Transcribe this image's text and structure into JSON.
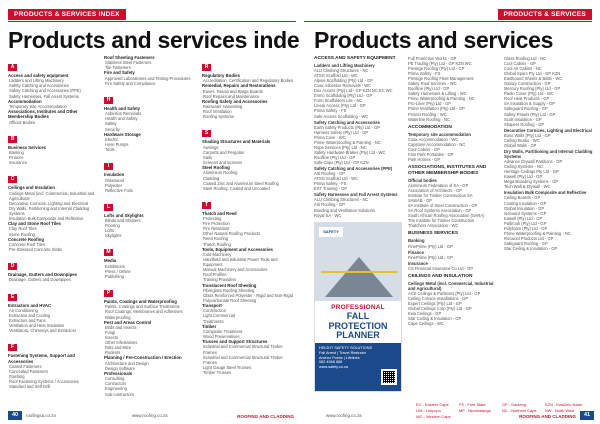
{
  "left": {
    "header_tag": "PRODUCTS & SERVICES INDEX",
    "title": "Products and services index",
    "columns": [
      [
        {
          "letter": "A",
          "groups": [
            {
              "title": "Access and safety equipment",
              "items": [
                "Ladders and Lifting Machinery",
                "Safety Catching and Accessories",
                "Safety Catching and Accessories (PPE)",
                "Safety Harnesses, Fall Arrest Systems"
              ]
            },
            {
              "title": "Accommodation",
              "items": [
                "Temporary Site Accommodation"
              ]
            },
            {
              "title": "Associations, Institutes and Other Membership Bodies",
              "items": [
                "Official Bodies"
              ]
            }
          ]
        },
        {
          "letter": "B",
          "groups": [
            {
              "title": "Business Services",
              "items": [
                "Banking",
                "Finance",
                "Insurance"
              ]
            }
          ]
        },
        {
          "letter": "C",
          "groups": [
            {
              "title": "Ceilings and Insulation",
              "items": [
                "Ceilings Metal (incl. Commercial, Industrial and Agricultural",
                "Decorative Cornices, Lighting and Electrical",
                "Dry Walls, Partitioning and Internal Cladding Systems",
                "Insulation Bulk Composite and Reflective"
              ]
            },
            {
              "title": "Clay and Stone Roof Tiles",
              "items": [
                "Clay Roof Tiles",
                "Stone Roofing"
              ]
            },
            {
              "title": "Concrete Roofing",
              "items": [
                "Concrete Roof Tiles",
                "Pre-Stressed Concrete Slabs"
              ]
            }
          ]
        },
        {
          "letter": "D",
          "groups": [
            {
              "title": "Drainage, Gutters and Downpipes",
              "items": [
                "Drainage, Gutters and Downpipes"
              ]
            }
          ]
        },
        {
          "letter": "E",
          "groups": [
            {
              "title": "Extractors and HVAC",
              "items": [
                "Air Conditioning",
                "Extraction and Cooling",
                "Extractors and Fans",
                "Ventilation and Heat Insulation",
                "Ventilators, Chimneys and Extractors"
              ]
            }
          ]
        },
        {
          "letter": "F",
          "groups": [
            {
              "title": "Fastening Systems, Support and Accessories",
              "items": [
                "Coated Fasteners",
                "Concealed Fasteners",
                "Flashing",
                "Roof Fastening Systems / Accessories",
                "Standard and Self-Drill"
              ]
            }
          ]
        }
      ],
      [
        {
          "letter": "",
          "groups": [
            {
              "title": "Roof Sheeting Fasteners",
              "items": [
                "Stainless Steel Fasteners",
                "Tile Fasteners"
              ]
            },
            {
              "title": "Fire and Safety",
              "items": [
                "Approved Laboratories and Testing Procedures",
                "Fire Safety and Compliance"
              ]
            }
          ]
        },
        {
          "letter": "H",
          "groups": [
            {
              "title": "Health and Safety",
              "items": [
                "Asbestos Removals",
                "Health and Safety",
                "Safety",
                "Security"
              ]
            },
            {
              "title": "Hardware Storage",
              "items": [
                "Electric",
                "Hose Pumps",
                "Tools"
              ]
            }
          ]
        },
        {
          "letter": "I",
          "groups": [
            {
              "title": "Insulation",
              "items": [
                "Glasswool",
                "Polyester",
                "Reflective Foils"
              ]
            }
          ]
        },
        {
          "letter": "L",
          "groups": [
            {
              "title": "Lofts and Skylights",
              "items": [
                "Blinds and Shutters",
                "Flooring",
                "Lofts",
                "Skylights"
              ]
            }
          ]
        },
        {
          "letter": "M",
          "groups": [
            {
              "title": "Media",
              "items": [
                "Exhibitions",
                "Press / Online",
                "Publishing"
              ]
            }
          ]
        },
        {
          "letter": "P",
          "groups": [
            {
              "title": "Paints, Coatings and Waterproofing",
              "items": [
                "Paints, Coatings and Surface Treatments",
                "Roof Coatings, Membranes and Adhesives",
                "Waterproofing"
              ]
            },
            {
              "title": "Pest and Areas Control",
              "items": [
                "Birds and Insects",
                "Fungi",
                "Insects",
                "Other Infestations",
                "Rats and Mice",
                "Rodents"
              ]
            },
            {
              "title": "Planning / Pre-Construction / Erection",
              "items": [
                "Architecture and Design",
                "Design Software"
              ]
            },
            {
              "title": "Professionals",
              "items": [
                "Consulting",
                "Contractors",
                "Engineering",
                "Sub-contractors"
              ]
            }
          ]
        }
      ],
      [
        {
          "letter": "R",
          "groups": [
            {
              "title": "Regulatory Bodies",
              "items": [
                "Accreditation, Certification and Regulatory Bodies"
              ]
            },
            {
              "title": "Remedial, Repairs and Restorations",
              "items": [
                "Eaves, Fascia and Barge Boards",
                "Roof Repairs and Maintenance"
              ]
            },
            {
              "title": "Roofing Safety and Accessories",
              "items": [
                "Rainwater Harvesting",
                "Roof Ventilation",
                "Roofing Systems"
              ]
            }
          ]
        },
        {
          "letter": "S",
          "groups": [
            {
              "title": "Shading Structures and Materials",
              "items": [
                "Awnings",
                "Carports and Pergolas",
                "Sails",
                "Screens and Screens"
              ]
            },
            {
              "title": "Steel Roofing",
              "items": [
                "Aluminium Roofing",
                "Cladding",
                "Coated Zinc and Aluminium Steel Roofing",
                "Steel Roofing, Coated and Uncoated"
              ]
            }
          ]
        },
        {
          "letter": "T",
          "groups": [
            {
              "title": "Thatch and Reed",
              "items": [
                "Protecting",
                "Fire Protection",
                "Fire Retardant",
                "Other Natural Roofing Products",
                "Reed Roofing",
                "Thatch Roofing"
              ]
            },
            {
              "title": "Tools, Equipment and Accessories",
              "items": [
                "Cold Machinery",
                "Handheld and Industrial Power Tools and Equipment",
                "Manual Machinery and Accessories",
                "Roof Profiles",
                "Training Providers"
              ]
            },
            {
              "title": "Translucent Roof Sheeting",
              "items": [
                "Fibreglass Roofing Sheeting",
                "Glass Reinforced Polyester - Rigid and Non-Rigid",
                "Polycarbonate Roof Sheeting"
              ]
            },
            {
              "title": "Transport",
              "items": [
                "Construction",
                "Light Commercial",
                "Treatments"
              ]
            },
            {
              "title": "Timber",
              "items": [
                "Composite Treatment",
                "Wood Preservatives"
              ]
            },
            {
              "title": "Trusses and Support Structures",
              "items": [
                "Industrial and Commercial Structural Timber Frames",
                "Industrial and Commercial Structural Timber Frames",
                "Light Gauge Steel Trusses",
                "Timber Trusses"
              ]
            }
          ]
        }
      ]
    ],
    "page_number": "40",
    "footer_site_a": "roofingsa.co.za",
    "footer_site_c": "www.roofing.co.za",
    "brand": "ROOFING AND CLADDING"
  },
  "right": {
    "header_tag": "PRODUCTS & SERVICES",
    "title": "Products and services",
    "columns": [
      [
        {
          "heading": "ACCESS AND SAFETY EQUIPMENT",
          "groups": [
            {
              "title": "Ladders and Lifting Machinery",
              "items": [
                "ALU Climbing Structures - NC",
                "ATSG Scaffold Ltd - WC",
                "Alpine Scaffolding (Pty) Ltd - GP",
                "Coax Asbestos Removals - WC",
                "Dux Access (Pty) Ltd - GP KZN NC EC WC",
                "Enmo Scaffolding (Pty) Ltd - GP",
                "Form Scaffolders Lite - NC",
                "Linear Access (Pty) Ltd - GP",
                "Prima Safety - FS",
                "Safe Access Scaffolding - WC"
              ]
            },
            {
              "title": "Safety Catching and Accessories",
              "items": [
                "Earth Safety Products (Pty) Ltd - GP",
                "Harness Safety (Pty) Ltd - GP",
                "Prima Cove - WC",
                "Prime Waterproofing & Painting - NC",
                "Rope Services (Pty) Ltd - NC",
                "Safety Hardware Brakes (Pty) Ltd - WC",
                "Roofline (Pty) Ltd - GP",
                "Safe Caps (Pty) Ltd - GP KZN"
              ]
            },
            {
              "title": "Safety Catching and Accessories (PPE)",
              "items": [
                "Arti Roofing - GP",
                "ATSG Scaffold Ltd - WC",
                "Prima Safety - FS",
                "EST Training - GP"
              ]
            },
            {
              "title": "Safety Harnesses and Fall Arrest Systems",
              "items": [
                "ALU Climbing Structures - NC",
                "Arti Roofing - GP",
                "Bunding and Ventilation Solutions",
                "Royal SA - WC"
              ]
            }
          ]
        }
      ],
      [
        {
          "heading": "",
          "groups": [
            {
              "title": "",
              "items": [
                "Full Protection Works - GP",
                "PE Trading (Pty) Ltd - GP KZN WC",
                "Prestige Roofing (Pty) Ltd - GP",
                "Prima Safety - FS",
                "Prestige Roofing Fleet Management",
                "Safety Roof Services - WC",
                "Roofline (Pty) Ltd - GP",
                "Safety Harnesses & Lifting - WC",
                "Prime Waterproofing & Painting - NC",
                "Pro-Liner (Pty) Ltd - GP",
                "Prime Ventilation (Pty) Ltd - GP",
                "Protect Roofing - WC",
                "Waterline Roofing - NC"
              ]
            }
          ]
        },
        {
          "heading": "ACCOMMODATION",
          "groups": [
            {
              "title": "Temporary site accommodation",
              "items": [
                "Coax Accommodation - WC",
                "Capstone Accommodation - NC",
                "Cool Cabins - GP",
                "Fast Park Portables - GP",
                "Park Homes - GP"
              ]
            }
          ]
        },
        {
          "heading": "ASSOCIATIONS, INSTITUTES AND OTHER MEMBERSHIP BODIES",
          "groups": [
            {
              "title": "Official bodies",
              "items": [
                "Aluminium Federation of SA - GP",
                "Association of Architects - GP",
                "Institute for Timber Construction SA",
                "SAWAB - GP",
                "SA Institute of Steel Construction - GP",
                "SA Roof Systems Association - GP",
                "South African Roofing Association (SARA)",
                "The Institute for Timber Construction",
                "Thatchers Association - WC"
              ]
            }
          ]
        },
        {
          "heading": "BUSINESS SERVICES",
          "groups": [
            {
              "title": "Banking",
              "items": [
                "FinePrime (Pty) Ltd - GP"
              ]
            },
            {
              "title": "Finance",
              "items": [
                "FinePrime (Pty) Ltd - GP"
              ]
            },
            {
              "title": "Insurance",
              "items": [
                "CS Financial Insurance Co Ltd - GP"
              ]
            }
          ]
        },
        {
          "heading": "CEILINGS AND INSULATION",
          "groups": [
            {
              "title": "Ceilings Metal (incl. Commercial, Industrial and Agricultural)",
              "items": [
                "ACS Ceilings & Partitions (Pty) Ltd - GP",
                "Ceiling Cornice Installations - GP",
                "Expert Ceilings (Pty) Ltd - GP",
                "Global Ceilings Corp (Pty) Ltd - GP",
                "Kwa Ceilings - GP",
                "Star Ceiling & Insulation - GP",
                "Cape Ceilings - WC"
              ]
            }
          ]
        }
      ],
      [
        {
          "heading": "",
          "groups": [
            {
              "title": "",
              "items": [
                "Glass Roofing Ltd - NC",
                "Cool Cabins - GP",
                "Cool Air Cabins - NC",
                "Global Spars Pty Ltd - GP KZN",
                "Eastbound Sheets & Batts - WC",
                "Galaxy Construction - GP",
                "Mercury Roofing (Pty) Ltd - GP",
                "Radio Cover (Pty) Ltd - WC",
                "Roof Heat Products - GP",
                "SA Insulation & Supply - GP",
                "Safeguard Roofing - GP",
                "Safety Panels (Pty) Ltd - GP",
                "Scott Insulation - GP",
                "Shapers Roofing - GP"
              ]
            },
            {
              "title": "Decorative Cornices, Lighting and Electrical",
              "items": [
                "Boso Walls (Pty) Ltd - GP",
                "Ceiling Studio - WC",
                "Global Walls - GP"
              ]
            },
            {
              "title": "Dry Walls, Partitioning and Internal Cladding Systems",
              "items": [
                "Advance Drywall Partitions - GP",
                "Ceiling Systems - NC",
                "Heritage Ceilings Pty Ltd - GP",
                "Kawell (Pty) Ltd - GP",
                "Mega Boarding Systems - GP",
                "Tech Wall & Drywall - WC"
              ]
            },
            {
              "title": "Insulation Bulk Composite and Reflective",
              "items": [
                "Ceiling Boards - GP",
                "Coating Insulation - GP",
                "Global Insulation - GP",
                "Isoboard Systems - GP",
                "Kawell (Pty) Ltd - GP",
                "Palbrook (Pty) Ltd - GP",
                "Polyfoam (Pty) Ltd - GP",
                "Prime Waterproofing & Painting - NC",
                "Rocwool Products Ltd - GP",
                "Safeguard Roofing - GP",
                "Star Ceiling & Insulation - GP"
              ]
            }
          ]
        }
      ]
    ],
    "ad": {
      "logo": "SAFETY",
      "line1": "PROFESSIONAL",
      "line2": "FALL PROTECTION",
      "line3": "PLANNER",
      "details": [
        "HEIGHT SAFETY SOLUTIONS",
        "Fall Arrest | Travel Restraint",
        "Anchor Points | Lifelines",
        "082 4568 888",
        "www.safety.co.za"
      ]
    },
    "legend": [
      "EC - Eastern Cape",
      "FS - Free State",
      "GP - Gauteng",
      "KZN - KwaZulu-Natal",
      "LIM - Limpopo",
      "MP - Mpumalanga",
      "NC - Northern Cape",
      "NW - North West",
      "WC - Western Cape"
    ],
    "page_number": "41",
    "footer_site_c": "www.roofing.co.za",
    "brand": "ROOFING AND CLADDING"
  }
}
